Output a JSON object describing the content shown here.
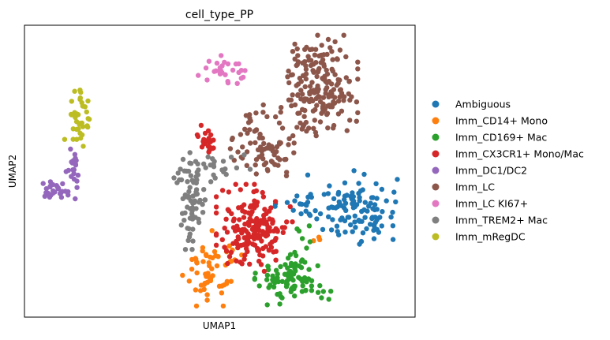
{
  "chart_data": {
    "type": "scatter",
    "title": "cell_type_PP",
    "xlabel": "UMAP1",
    "ylabel": "UMAP2",
    "xlim": [
      0,
      100
    ],
    "ylim": [
      0,
      100
    ],
    "show_ticks": false,
    "grid": false,
    "legend_position": "right-outside",
    "series": [
      {
        "name": "Ambiguous",
        "color": "#1f77b4",
        "clusters": [
          {
            "cx": 85,
            "cy": 37,
            "sx": 5.5,
            "sy": 6,
            "n": 110
          },
          {
            "cx": 71,
            "cy": 38,
            "sx": 3,
            "sy": 2.5,
            "n": 18
          }
        ]
      },
      {
        "name": "Imm_CD14+ Mono",
        "color": "#ff7f0e",
        "clusters": [
          {
            "cx": 48,
            "cy": 16,
            "sx": 3.5,
            "sy": 6,
            "n": 60
          },
          {
            "cx": 76,
            "cy": 26,
            "sx": 1.5,
            "sy": 1,
            "n": 3
          }
        ]
      },
      {
        "name": "Imm_CD169+ Mac",
        "color": "#2ca02c",
        "clusters": [
          {
            "cx": 69,
            "cy": 12,
            "sx": 4.5,
            "sy": 4,
            "n": 85
          },
          {
            "cx": 71,
            "cy": 23,
            "sx": 2,
            "sy": 4,
            "n": 10
          }
        ]
      },
      {
        "name": "Imm_CX3CR1+ Mono/Mac",
        "color": "#d62728",
        "clusters": [
          {
            "cx": 59,
            "cy": 30,
            "sx": 4.5,
            "sy": 7,
            "n": 180
          },
          {
            "cx": 47,
            "cy": 61,
            "sx": 1.3,
            "sy": 2.3,
            "n": 22
          }
        ]
      },
      {
        "name": "Imm_DC1/DC2",
        "color": "#9467bd",
        "clusters": [
          {
            "cx": 7,
            "cy": 43,
            "sx": 1.6,
            "sy": 1.5,
            "n": 30
          },
          {
            "cx": 12,
            "cy": 50,
            "sx": 0.9,
            "sy": 4.5,
            "n": 20
          }
        ]
      },
      {
        "name": "Imm_LC",
        "color": "#8c564b",
        "clusters": [
          {
            "cx": 76,
            "cy": 80,
            "sx": 4.5,
            "sy": 8,
            "n": 190
          },
          {
            "cx": 62,
            "cy": 60,
            "sx": 4.5,
            "sy": 6,
            "n": 80
          }
        ]
      },
      {
        "name": "Imm_LC KI67+",
        "color": "#e377c2",
        "clusters": [
          {
            "cx": 51,
            "cy": 85,
            "sx": 3,
            "sy": 2.5,
            "n": 28
          }
        ]
      },
      {
        "name": "Imm_TREM2+ Mac",
        "color": "#7f7f7f",
        "clusters": [
          {
            "cx": 43,
            "cy": 38,
            "sx": 2,
            "sy": 7,
            "n": 60
          },
          {
            "cx": 48,
            "cy": 51,
            "sx": 4.5,
            "sy": 2.5,
            "n": 35
          }
        ]
      },
      {
        "name": "Imm_mRegDC",
        "color": "#bcbd22",
        "clusters": [
          {
            "cx": 13,
            "cy": 68,
            "sx": 1.8,
            "sy": 6,
            "n": 40
          }
        ]
      }
    ]
  }
}
